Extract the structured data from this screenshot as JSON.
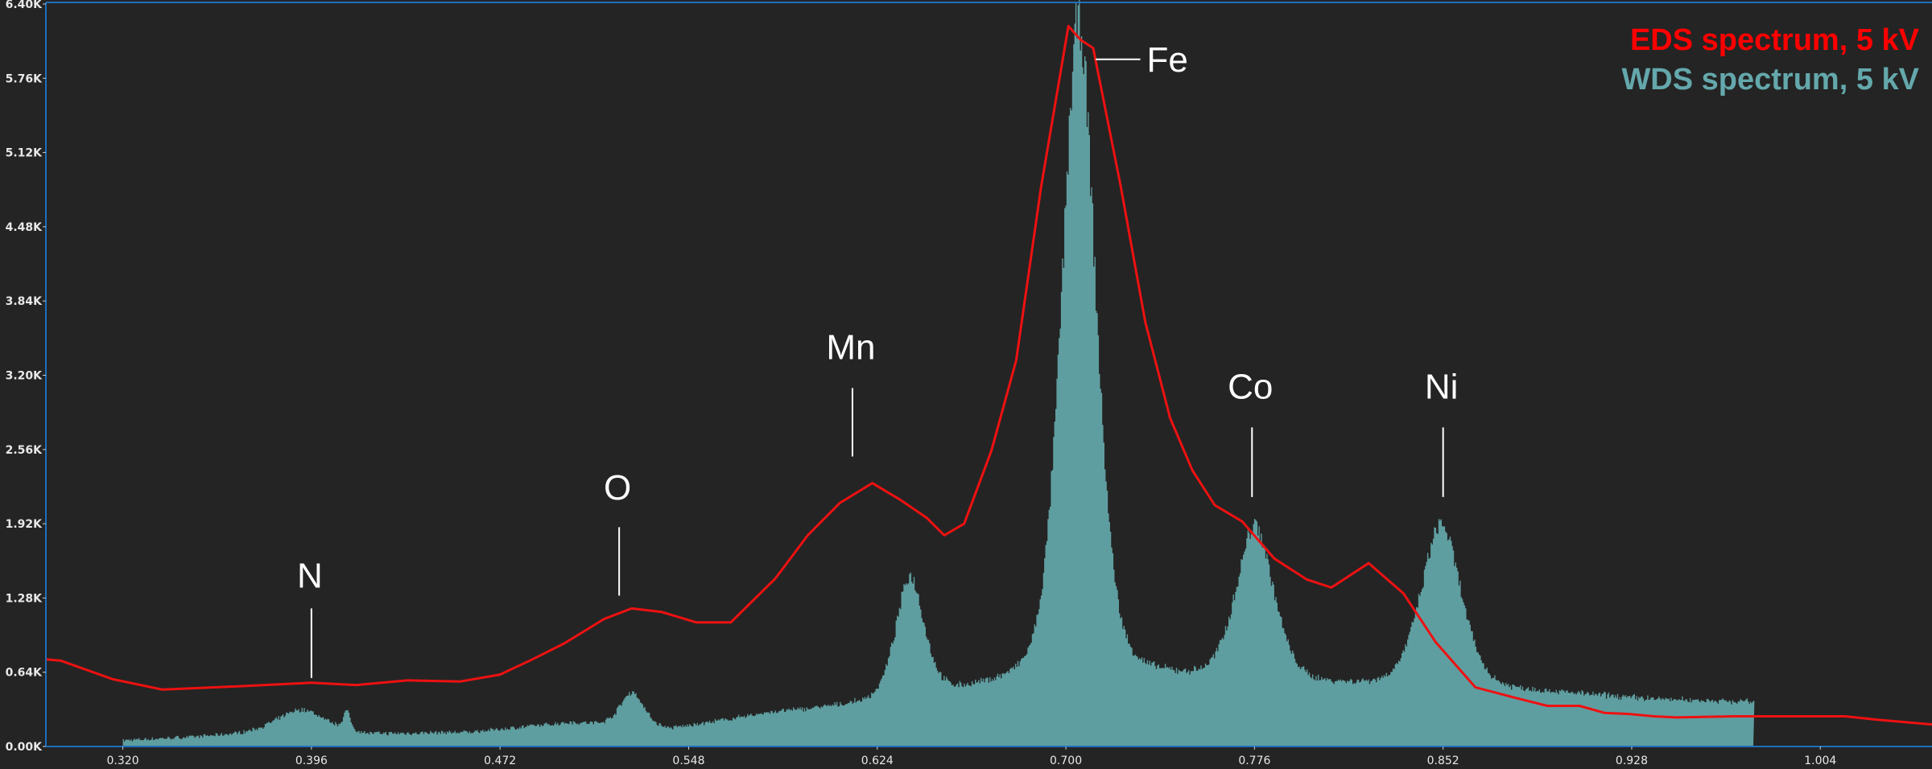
{
  "chart_data": {
    "type": "area",
    "title": "",
    "xlabel": "",
    "ylabel": "",
    "xlim": [
      0.289,
      1.049
    ],
    "ylim": [
      0,
      6.4
    ],
    "grid": false,
    "legend_position": "top-right",
    "y_ticks": [
      "0.00K",
      "0.64K",
      "1.28K",
      "1.92K",
      "2.56K",
      "3.20K",
      "3.84K",
      "4.48K",
      "5.12K",
      "5.76K",
      "6.40K"
    ],
    "x_ticks": [
      "0.320",
      "0.396",
      "0.472",
      "0.548",
      "0.624",
      "0.700",
      "0.776",
      "0.852",
      "0.928",
      "1.004"
    ],
    "legend": [
      {
        "label": "EDS spectrum, 5 kV",
        "color": "#ff0000"
      },
      {
        "label": "WDS spectrum, 5 kV",
        "color": "#5f9ea0"
      }
    ],
    "series": [
      {
        "name": "EDS spectrum, 5 kV",
        "style": "line",
        "color": "#ee1111",
        "x": [
          0.289,
          0.295,
          0.316,
          0.336,
          0.368,
          0.396,
          0.414,
          0.435,
          0.456,
          0.472,
          0.485,
          0.498,
          0.514,
          0.525,
          0.537,
          0.551,
          0.565,
          0.583,
          0.596,
          0.609,
          0.622,
          0.633,
          0.644,
          0.651,
          0.659,
          0.67,
          0.68,
          0.69,
          0.701,
          0.706,
          0.711,
          0.722,
          0.732,
          0.742,
          0.751,
          0.76,
          0.771,
          0.784,
          0.797,
          0.807,
          0.822,
          0.836,
          0.849,
          0.865,
          0.881,
          0.894,
          0.907,
          0.917,
          0.927,
          0.937,
          0.946,
          0.969,
          0.995,
          1.014,
          1.027,
          1.049
        ],
        "y": [
          0.75,
          0.74,
          0.58,
          0.49,
          0.52,
          0.55,
          0.53,
          0.57,
          0.56,
          0.62,
          0.75,
          0.89,
          1.1,
          1.19,
          1.16,
          1.07,
          1.07,
          1.45,
          1.82,
          2.1,
          2.27,
          2.13,
          1.97,
          1.82,
          1.92,
          2.55,
          3.33,
          4.82,
          6.21,
          6.09,
          6.02,
          4.84,
          3.66,
          2.83,
          2.38,
          2.08,
          1.94,
          1.62,
          1.44,
          1.37,
          1.58,
          1.32,
          0.9,
          0.51,
          0.42,
          0.35,
          0.35,
          0.29,
          0.28,
          0.26,
          0.25,
          0.26,
          0.26,
          0.26,
          0.23,
          0.19
        ]
      },
      {
        "name": "WDS spectrum, 5 kV",
        "style": "filled-histogram",
        "color": "#5f9ea0",
        "x_range": [
          0.32,
          0.977
        ],
        "baseline_points": {
          "x": [
            0.32,
            0.35,
            0.38,
            0.42,
            0.46,
            0.5,
            0.54,
            0.58,
            0.62,
            0.66,
            0.7,
            0.74,
            0.78,
            0.82,
            0.86,
            0.9,
            0.94,
            0.977
          ],
          "y": [
            0.05,
            0.08,
            0.12,
            0.1,
            0.12,
            0.2,
            0.14,
            0.28,
            0.35,
            0.45,
            0.55,
            0.55,
            0.52,
            0.5,
            0.48,
            0.45,
            0.4,
            0.38
          ]
        },
        "peaks": [
          {
            "element": "N",
            "center": 0.392,
            "height": 0.2,
            "width": 0.01
          },
          {
            "element": "",
            "center": 0.41,
            "height": 0.16,
            "width": 0.0015
          },
          {
            "element": "O",
            "center": 0.525,
            "height": 0.3,
            "width": 0.005
          },
          {
            "element": "Mn",
            "center": 0.637,
            "height": 1.05,
            "width": 0.006
          },
          {
            "element": "Fe",
            "center": 0.705,
            "height": 5.7,
            "width": 0.0072
          },
          {
            "element": "Co",
            "center": 0.776,
            "height": 1.35,
            "width": 0.008
          },
          {
            "element": "Ni",
            "center": 0.851,
            "height": 1.42,
            "width": 0.0085
          }
        ],
        "peak_max_values": {
          "N": 0.24,
          "O": 0.48,
          "Mn": 1.4,
          "Fe": 6.22,
          "Co": 1.88,
          "Ni": 1.92
        }
      }
    ],
    "annotations": [
      {
        "text": "N",
        "x": 0.396,
        "label_y": 1.48,
        "tick_top": 1.19,
        "tick_bottom": 0.59
      },
      {
        "text": "O",
        "x": 0.52,
        "label_y": 2.24,
        "tick_top": 1.89,
        "tick_bottom": 1.3
      },
      {
        "text": "Mn",
        "x": 0.614,
        "label_y": 3.45,
        "tick_top": 3.09,
        "tick_bottom": 2.5
      },
      {
        "text": "Fe",
        "x": 0.715,
        "label_y": 5.93,
        "tick_left_x": 0.712,
        "tick_right_x": 0.73,
        "leader": "horizontal"
      },
      {
        "text": "Co",
        "x": 0.775,
        "label_y": 3.11,
        "tick_top": 2.75,
        "tick_bottom": 2.15
      },
      {
        "text": "Ni",
        "x": 0.852,
        "label_y": 3.11,
        "tick_top": 2.75,
        "tick_bottom": 2.15
      }
    ]
  },
  "legend": {
    "eds_label": "EDS spectrum, 5 kV",
    "wds_label": "WDS spectrum, 5 kV"
  },
  "labels": {
    "N": "N",
    "O": "O",
    "Mn": "Mn",
    "Fe": "Fe",
    "Co": "Co",
    "Ni": "Ni"
  },
  "colors": {
    "background": "#242424",
    "axis": "#1e6fbf",
    "eds": "#ee1111",
    "wds": "#5f9ea0",
    "eds_legend": "#ff0000",
    "wds_legend": "#64a8ac",
    "text": "#e8e8e8"
  }
}
